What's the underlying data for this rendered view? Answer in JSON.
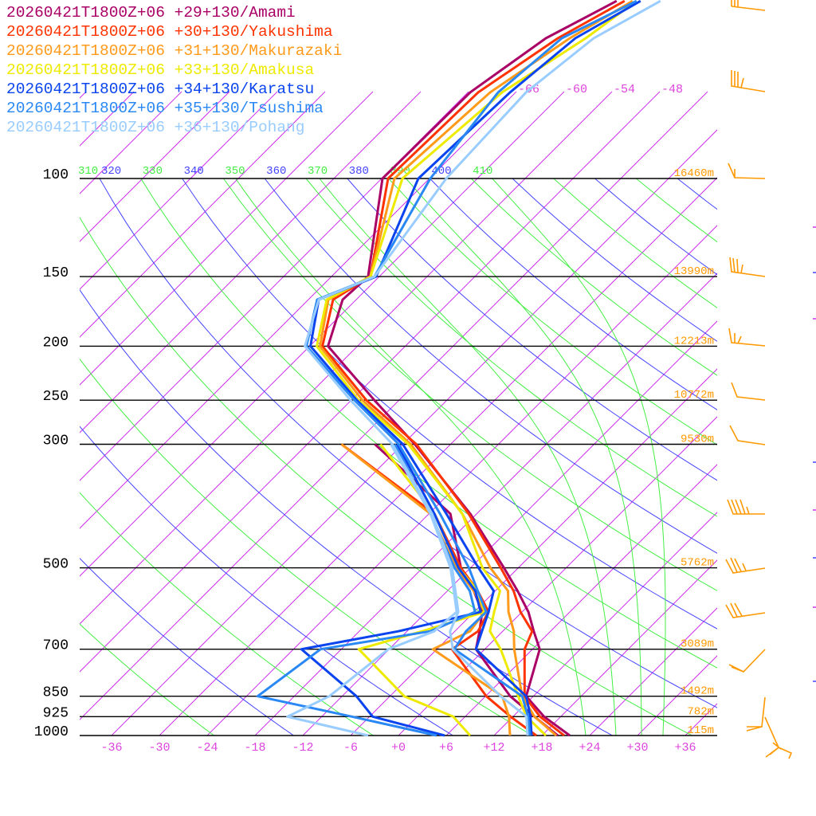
{
  "legend": [
    {
      "label": "20260421T1800Z+06 +29+130/Amami",
      "color": "#aa0066"
    },
    {
      "label": "20260421T1800Z+06 +30+130/Yakushima",
      "color": "#ff3300"
    },
    {
      "label": "20260421T1800Z+06 +31+130/Makurazaki",
      "color": "#ff9a1a"
    },
    {
      "label": "20260421T1800Z+06 +33+130/Amakusa",
      "color": "#eeea00"
    },
    {
      "label": "20260421T1800Z+06 +34+130/Karatsu",
      "color": "#0a44ee"
    },
    {
      "label": "20260421T1800Z+06 +35+130/Tsushima",
      "color": "#2a88f5"
    },
    {
      "label": "20260421T1800Z+06 +36+130/Pohang",
      "color": "#99ccff"
    }
  ],
  "chart_data": {
    "type": "line",
    "title": "Skew-T log-p sounding",
    "x_unit": "degC",
    "y_unit": "hPa",
    "pressure_levels": [
      {
        "p": 100,
        "label": "100",
        "height": "16460m"
      },
      {
        "p": 150,
        "label": "150",
        "height": "13990m"
      },
      {
        "p": 200,
        "label": "200",
        "height": "12213m"
      },
      {
        "p": 250,
        "label": "250",
        "height": "10772m"
      },
      {
        "p": 300,
        "label": "300",
        "height": "9530m"
      },
      {
        "p": 500,
        "label": "500",
        "height": "5762m"
      },
      {
        "p": 700,
        "label": "700",
        "height": "3089m"
      },
      {
        "p": 850,
        "label": "850",
        "height": "1492m"
      },
      {
        "p": 925,
        "label": "925",
        "height": "782m"
      },
      {
        "p": 1000,
        "label": "1000",
        "height": "115m"
      }
    ],
    "x_ticks": [
      "-36",
      "-30",
      "-24",
      "-18",
      "-12",
      "-6",
      "+0",
      "+6",
      "+12",
      "+18",
      "+24",
      "+30",
      "+36"
    ],
    "x_tick_values": [
      -36,
      -30,
      -24,
      -18,
      -12,
      -6,
      0,
      6,
      12,
      18,
      24,
      30,
      36
    ],
    "isotherm_labels": [
      "-66",
      "-60",
      "-54",
      "-48"
    ],
    "isotherm_label_values": [
      -66,
      -60,
      -54,
      -48
    ],
    "theta_labels": [
      "310",
      "320",
      "330",
      "340",
      "350",
      "360",
      "370",
      "380",
      "390",
      "400",
      "410"
    ],
    "theta_values": [
      310,
      320,
      330,
      340,
      350,
      360,
      370,
      380,
      390,
      400,
      410
    ],
    "moist_adiabat_start_temps": [
      23.5,
      27.3,
      30.5,
      33.2
    ],
    "temperature_pressures": [
      1000,
      925,
      850,
      700,
      650,
      600,
      550,
      500,
      400,
      300,
      250,
      200,
      165,
      150,
      100,
      70,
      56,
      48
    ],
    "dewpoint_pressures": [
      1000,
      925,
      850,
      700,
      650,
      600,
      550,
      500,
      400,
      300
    ],
    "series": [
      {
        "name": "Amami",
        "color": "#aa0066",
        "temperature": [
          21.5,
          15.9,
          11.1,
          6.9,
          3.9,
          0.8,
          -3.2,
          -7.8,
          -18.8,
          -34.5,
          -45.1,
          -57.7,
          -61.7,
          -61.4,
          -71.9,
          -71.7,
          -69.0,
          -64.8
        ],
        "dewpoint": [
          20.0,
          14.7,
          9.1,
          -1.1,
          -2.9,
          -5.0,
          -8.7,
          -13.2,
          -21.3,
          -39.5
        ]
      },
      {
        "name": "Yakushima",
        "color": "#ff3300",
        "temperature": [
          20.8,
          15.4,
          10.9,
          5.0,
          3.7,
          -0.2,
          -3.7,
          -8.2,
          -19.0,
          -34.3,
          -46.1,
          -58.4,
          -62.9,
          -61.1,
          -71.2,
          -70.7,
          -67.5,
          -63.8
        ],
        "dewpoint": [
          17.3,
          11.7,
          6.1,
          -4.1,
          -3.1,
          -4.2,
          -8.2,
          -13.2,
          -23.3,
          -43.7
        ]
      },
      {
        "name": "Makurazaki",
        "color": "#ff9a1a",
        "temperature": [
          19.8,
          14.7,
          10.6,
          3.7,
          1.4,
          -1.7,
          -4.4,
          -9.5,
          -19.8,
          -35.0,
          -46.6,
          -58.7,
          -63.5,
          -61.1,
          -70.4,
          -69.2,
          -66.0,
          -62.8
        ],
        "dewpoint": [
          14.0,
          11.5,
          8.1,
          -6.5,
          -4.1,
          -4.7,
          -8.7,
          -13.8,
          -23.8,
          -43.7
        ]
      },
      {
        "name": "Amakusa",
        "color": "#eeea00",
        "temperature": [
          18.5,
          13.7,
          10.1,
          2.0,
          -1.6,
          -3.5,
          -5.4,
          -10.5,
          -19.8,
          -35.3,
          -47.1,
          -59.1,
          -63.7,
          -61.1,
          -69.4,
          -67.7,
          -64.0,
          -62.3
        ],
        "dewpoint": [
          9.0,
          4.5,
          -4.2,
          -15.8,
          -10.1,
          -4.7,
          -8.2,
          -13.5,
          -23.3,
          -38.8
        ]
      },
      {
        "name": "Karatsu",
        "color": "#0a44ee",
        "temperature": [
          16.7,
          14.2,
          11.1,
          -1.1,
          -2.6,
          -4.2,
          -6.2,
          -11.0,
          -21.8,
          -36.0,
          -47.3,
          -59.9,
          -64.7,
          -60.4,
          -67.4,
          -66.7,
          -65.3,
          -61.8
        ],
        "dewpoint": [
          5.8,
          -5.6,
          -10.2,
          -23.0,
          -13.1,
          -5.2,
          -8.5,
          -13.5,
          -23.3,
          -36.7
        ]
      },
      {
        "name": "Tsushima",
        "color": "#2a88f5",
        "temperature": [
          16.5,
          13.9,
          10.6,
          -3.8,
          -4.6,
          -4.5,
          -8.2,
          -12.2,
          -22.6,
          -36.5,
          -47.6,
          -60.4,
          -64.9,
          -60.6,
          -65.9,
          -68.2,
          -67.0,
          -62.3
        ],
        "dewpoint": [
          4.8,
          -8.2,
          -22.6,
          -20.6,
          -9.1,
          -5.9,
          -9.2,
          -14.0,
          -23.8,
          -37.0
        ]
      },
      {
        "name": "Pohang",
        "color": "#99ccff",
        "temperature": [
          16.2,
          13.7,
          7.9,
          -4.0,
          -6.6,
          -8.0,
          -11.0,
          -14.3,
          -23.6,
          -37.3,
          -48.1,
          -60.6,
          -64.7,
          -60.6,
          -63.9,
          -64.7,
          -63.0,
          -59.3
        ],
        "dewpoint": [
          -3.8,
          -16.3,
          -13.6,
          -12.1,
          -8.6,
          -8.2,
          -11.2,
          -14.5,
          -23.8,
          -37.5
        ]
      }
    ],
    "colors": {
      "isotherm": "#cc33ee",
      "dry_adiabat_a": "#4444ff",
      "dry_adiabat_b": "#44ee44",
      "moist_adiabat": "#44ee44",
      "height_label": "#ff9900",
      "wind_barb": "#ff9900"
    }
  }
}
